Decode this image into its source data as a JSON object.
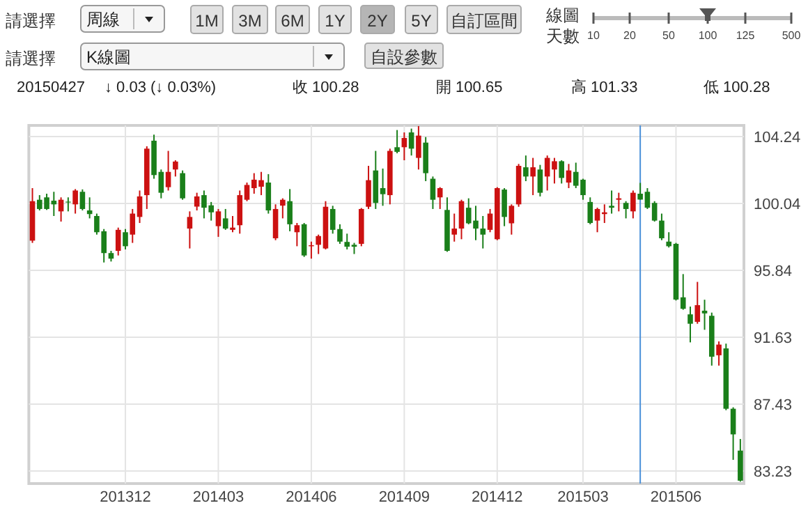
{
  "chart_data": {
    "type": "candlestick",
    "categories": [
      null,
      null,
      null,
      null,
      null,
      null,
      null,
      null,
      null,
      null,
      null,
      null,
      null,
      "201312",
      null,
      null,
      null,
      null,
      null,
      null,
      null,
      null,
      null,
      null,
      null,
      null,
      "201403",
      null,
      null,
      null,
      null,
      null,
      null,
      null,
      null,
      null,
      null,
      null,
      null,
      "201406",
      null,
      null,
      null,
      null,
      null,
      null,
      null,
      null,
      null,
      null,
      null,
      null,
      "201409",
      null,
      null,
      null,
      null,
      null,
      null,
      null,
      null,
      null,
      null,
      null,
      null,
      "201412",
      null,
      null,
      null,
      null,
      null,
      null,
      null,
      null,
      null,
      null,
      null,
      "201503",
      null,
      null,
      null,
      null,
      null,
      null,
      null,
      null,
      null,
      null,
      null,
      null,
      "201506",
      null,
      null,
      null,
      null,
      null,
      null,
      null,
      null,
      null
    ],
    "ohlc": [
      [
        97.7,
        101.0,
        97.56,
        100.18
      ],
      [
        100.27,
        100.56,
        99.6,
        99.69
      ],
      [
        100.42,
        100.65,
        99.63,
        99.69
      ],
      [
        100.21,
        100.77,
        99.25,
        99.98
      ],
      [
        99.54,
        100.42,
        98.9,
        100.27
      ],
      [
        100.15,
        100.42,
        99.54,
        100.1
      ],
      [
        99.98,
        100.94,
        99.4,
        100.85
      ],
      [
        100.77,
        100.92,
        99.6,
        99.69
      ],
      [
        99.6,
        100.42,
        99.1,
        99.37
      ],
      [
        99.25,
        99.4,
        98.08,
        98.23
      ],
      [
        98.29,
        98.43,
        96.33,
        96.92
      ],
      [
        96.92,
        97.06,
        96.39,
        96.57
      ],
      [
        97.06,
        98.52,
        96.77,
        98.38
      ],
      [
        98.23,
        98.43,
        97.15,
        97.35
      ],
      [
        98.08,
        99.69,
        97.56,
        99.4
      ],
      [
        99.19,
        100.85,
        98.81,
        100.48
      ],
      [
        100.56,
        103.63,
        99.69,
        103.48
      ],
      [
        103.98,
        104.36,
        101.59,
        101.82
      ],
      [
        102.02,
        102.17,
        100.36,
        100.71
      ],
      [
        101.06,
        103.34,
        100.85,
        102.02
      ],
      [
        102.17,
        102.75,
        101.73,
        102.67
      ],
      [
        101.94,
        102.11,
        100.27,
        100.36
      ],
      [
        98.46,
        99.54,
        97.21,
        99.19
      ],
      [
        99.84,
        100.71,
        99.6,
        100.48
      ],
      [
        100.56,
        100.85,
        99.1,
        99.77
      ],
      [
        99.92,
        100.13,
        98.96,
        99.48
      ],
      [
        98.61,
        99.69,
        97.94,
        99.54
      ],
      [
        99.1,
        99.69,
        98.38,
        98.46
      ],
      [
        98.38,
        99.25,
        98.23,
        98.52
      ],
      [
        98.67,
        100.85,
        98.14,
        100.56
      ],
      [
        100.27,
        101.35,
        100.18,
        101.2
      ],
      [
        101.0,
        101.94,
        100.65,
        101.53
      ],
      [
        101.09,
        102.02,
        100.56,
        101.5
      ],
      [
        101.35,
        101.88,
        99.4,
        99.6
      ],
      [
        97.85,
        99.98,
        97.73,
        99.69
      ],
      [
        99.9,
        100.36,
        99.1,
        100.27
      ],
      [
        100.18,
        100.94,
        98.29,
        98.73
      ],
      [
        98.23,
        98.81,
        97.35,
        98.67
      ],
      [
        98.73,
        98.81,
        96.68,
        96.77
      ],
      [
        97.35,
        97.64,
        96.57,
        97.41
      ],
      [
        97.44,
        98.08,
        96.86,
        97.99
      ],
      [
        97.21,
        100.18,
        97.15,
        99.83
      ],
      [
        99.69,
        99.89,
        98.14,
        98.38
      ],
      [
        98.43,
        98.73,
        97.5,
        97.64
      ],
      [
        97.62,
        98.14,
        97.15,
        97.32
      ],
      [
        97.44,
        97.56,
        96.86,
        97.32
      ],
      [
        97.5,
        99.75,
        97.35,
        99.69
      ],
      [
        99.83,
        102.4,
        99.69,
        101.5
      ],
      [
        102.11,
        103.34,
        99.69,
        100.07
      ],
      [
        101.0,
        102.23,
        99.89,
        100.62
      ],
      [
        100.56,
        103.48,
        99.98,
        103.34
      ],
      [
        103.57,
        104.65,
        103.19,
        103.28
      ],
      [
        103.57,
        104.5,
        102.75,
        104.15
      ],
      [
        104.5,
        104.74,
        103.05,
        103.48
      ],
      [
        102.9,
        104.9,
        102.17,
        104.3
      ],
      [
        103.86,
        104.21,
        101.44,
        101.94
      ],
      [
        101.59,
        101.73,
        99.69,
        100.27
      ],
      [
        100.42,
        101.06,
        99.69,
        101.0
      ],
      [
        99.63,
        100.42,
        97.0,
        97.06
      ],
      [
        98.08,
        99.4,
        97.64,
        98.46
      ],
      [
        98.46,
        100.27,
        97.79,
        100.18
      ],
      [
        99.77,
        100.36,
        98.73,
        98.79
      ],
      [
        98.96,
        99.89,
        97.73,
        98.46
      ],
      [
        98.46,
        99.25,
        97.21,
        98.08
      ],
      [
        98.38,
        99.69,
        98.23,
        99.4
      ],
      [
        97.79,
        101.06,
        97.73,
        101.0
      ],
      [
        100.91,
        101.0,
        98.61,
        99.19
      ],
      [
        98.79,
        99.98,
        98.08,
        99.89
      ],
      [
        99.98,
        102.52,
        99.83,
        102.4
      ],
      [
        102.31,
        103.05,
        101.44,
        101.73
      ],
      [
        101.73,
        102.9,
        100.56,
        102.31
      ],
      [
        102.17,
        102.46,
        100.48,
        100.71
      ],
      [
        101.73,
        103.05,
        100.85,
        102.9
      ],
      [
        102.17,
        102.9,
        101.29,
        102.69
      ],
      [
        102.69,
        102.75,
        101.29,
        101.64
      ],
      [
        101.35,
        102.52,
        101.0,
        102.11
      ],
      [
        102.02,
        102.6,
        101.0,
        101.15
      ],
      [
        101.53,
        101.59,
        100.27,
        100.56
      ],
      [
        100.13,
        100.42,
        98.73,
        98.81
      ],
      [
        98.96,
        99.77,
        98.23,
        99.69
      ],
      [
        99.37,
        99.98,
        98.81,
        99.48
      ],
      [
        99.89,
        100.85,
        99.4,
        99.77
      ],
      [
        100.27,
        100.71,
        99.54,
        100.36
      ],
      [
        100.07,
        100.18,
        99.1,
        99.69
      ],
      [
        99.54,
        100.85,
        99.1,
        100.71
      ],
      [
        100.65,
        101.33,
        100.28,
        100.28
      ],
      [
        100.77,
        101.0,
        99.69,
        99.77
      ],
      [
        100.07,
        100.18,
        98.9,
        98.96
      ],
      [
        98.96,
        99.4,
        97.73,
        97.85
      ],
      [
        97.64,
        98.23,
        97.27,
        97.35
      ],
      [
        97.5,
        97.56,
        93.94,
        94.0
      ],
      [
        94.14,
        95.6,
        93.36,
        93.42
      ],
      [
        93.07,
        93.56,
        91.31,
        92.48
      ],
      [
        92.6,
        95.11,
        92.48,
        93.65
      ],
      [
        93.3,
        93.99,
        92.1,
        93.13
      ],
      [
        92.98,
        93.18,
        89.85,
        90.41
      ],
      [
        90.5,
        91.37,
        89.85,
        91.17
      ],
      [
        90.93,
        91.23,
        87.05,
        87.14
      ],
      [
        87.14,
        87.23,
        83.93,
        85.53
      ],
      [
        84.51,
        85.24,
        82.56,
        82.62
      ]
    ],
    "ylim": [
      82.44,
      104.94
    ],
    "yticks": [
      83.23,
      87.43,
      91.63,
      95.84,
      100.04,
      104.24
    ],
    "grid": true,
    "annotations": [
      "請選擇",
      "周線",
      "1M",
      "3M",
      "6M",
      "1Y",
      "2Y",
      "5Y",
      "自訂區間",
      "線圖",
      "天數",
      "10",
      "20",
      "50",
      "100",
      "125",
      "500",
      "請選擇",
      "K線圖",
      "自設參數",
      "20150427",
      "↓ 0.03 (↓ 0.03%)",
      "收 100.28",
      "開 100.65",
      "高 101.33",
      "低 100.28"
    ]
  }
}
